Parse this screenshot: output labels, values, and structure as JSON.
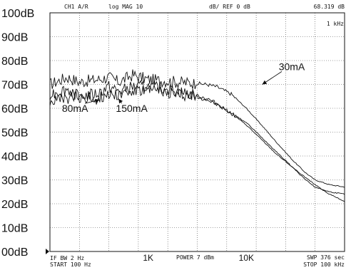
{
  "header": {
    "channel": "CH1 A/R",
    "format": "log MAG 10",
    "scale": "dB/ REF 0 dB",
    "marker_value": "68.319 dB",
    "marker_freq": "1 kHz"
  },
  "footer": {
    "ifbw": "IF BW 2 Hz",
    "start": "START  100 Hz",
    "power": "POWER  7 dBm",
    "swp": "SWP  376 sec",
    "stop": "STOP  100 kHz"
  },
  "chart_data": {
    "type": "line",
    "x_scale": "log",
    "xlim": [
      100,
      100000
    ],
    "ylim": [
      0,
      100
    ],
    "y_ticks": [
      {
        "value": 100,
        "label": "100dB"
      },
      {
        "value": 90,
        "label": "90dB"
      },
      {
        "value": 80,
        "label": "80dB"
      },
      {
        "value": 70,
        "label": "70dB"
      },
      {
        "value": 60,
        "label": "60dB"
      },
      {
        "value": 50,
        "label": "50dB"
      },
      {
        "value": 40,
        "label": "40dB"
      },
      {
        "value": 30,
        "label": "30dB"
      },
      {
        "value": 20,
        "label": "20dB"
      },
      {
        "value": 10,
        "label": "10dB"
      },
      {
        "value": 0,
        "label": "00dB"
      }
    ],
    "x_ticks": [
      {
        "value": 1000,
        "label": "1K"
      },
      {
        "value": 10000,
        "label": "10K"
      }
    ],
    "grid": true,
    "series": [
      {
        "name": "30mA",
        "x": [
          100,
          150,
          200,
          300,
          400,
          500,
          700,
          1000,
          1500,
          2000,
          3000,
          4000,
          5000,
          7000,
          10000,
          15000,
          20000,
          30000,
          40000,
          50000,
          70000,
          100000
        ],
        "y": [
          70,
          73,
          71,
          72,
          73,
          71,
          74,
          72,
          71.5,
          71,
          70.5,
          70,
          69,
          66,
          60,
          52,
          46,
          38,
          33,
          30,
          28,
          27
        ]
      },
      {
        "name": "80mA",
        "x": [
          100,
          150,
          200,
          300,
          400,
          500,
          700,
          1000,
          1500,
          2000,
          3000,
          4000,
          5000,
          7000,
          10000,
          15000,
          20000,
          30000,
          40000,
          50000,
          70000,
          100000
        ],
        "y": [
          66,
          68,
          65,
          66,
          69,
          67,
          69,
          69,
          68,
          67,
          65.5,
          64,
          62,
          58,
          53,
          46,
          41,
          35,
          30,
          27,
          25,
          24
        ]
      },
      {
        "name": "150mA",
        "x": [
          100,
          150,
          200,
          300,
          400,
          500,
          700,
          1000,
          1500,
          2000,
          3000,
          4000,
          5000,
          7000,
          10000,
          15000,
          20000,
          30000,
          40000,
          50000,
          70000,
          100000
        ],
        "y": [
          63,
          64,
          65,
          64,
          66,
          66,
          67,
          67.5,
          67,
          66,
          65,
          63.5,
          61.5,
          58,
          54,
          47,
          42,
          35,
          31,
          28,
          24,
          21
        ]
      }
    ],
    "annotations": [
      {
        "text": "30mA",
        "label_x": 29000,
        "label_y": 76,
        "tip_x": 14500,
        "tip_y": 70
      },
      {
        "text": "80mA",
        "label_x": 180,
        "label_y": 58.5,
        "tip_x": 320,
        "tip_y": 63.5
      },
      {
        "text": "150mA",
        "label_x": 680,
        "label_y": 58.5,
        "tip_x": 500,
        "tip_y": 64
      }
    ]
  }
}
